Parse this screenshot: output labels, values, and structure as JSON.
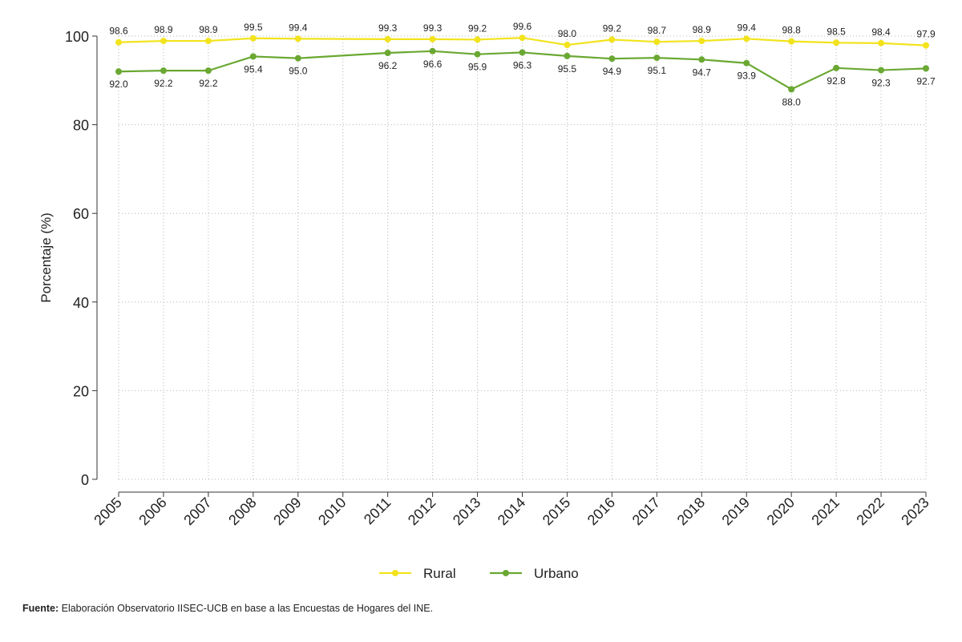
{
  "chart_data": {
    "type": "line",
    "title": "",
    "xlabel": "",
    "ylabel": "Porcentaje (%)",
    "ylim": [
      0,
      100
    ],
    "yticks": [
      0,
      20,
      40,
      60,
      80,
      100
    ],
    "grid": true,
    "legend_position": "bottom",
    "categories": [
      "2005",
      "2006",
      "2007",
      "2008",
      "2009",
      "2010",
      "2011",
      "2012",
      "2013",
      "2014",
      "2015",
      "2016",
      "2017",
      "2018",
      "2019",
      "2020",
      "2021",
      "2022",
      "2023"
    ],
    "series": [
      {
        "name": "Rural",
        "color": "#f2e31c",
        "values": [
          98.6,
          98.9,
          98.9,
          99.5,
          99.4,
          null,
          99.3,
          99.3,
          99.2,
          99.6,
          98.0,
          99.2,
          98.7,
          98.9,
          99.4,
          98.8,
          98.5,
          98.4,
          97.9
        ],
        "labels": [
          "98.6",
          "98.9",
          "98.9",
          "99.5",
          "99.4",
          null,
          "99.3",
          "99.3",
          "99.2",
          "99.6",
          "98.0",
          "99.2",
          "98.7",
          "98.9",
          "99.4",
          "98.8",
          "98.5",
          "98.4",
          "97.9"
        ]
      },
      {
        "name": "Urbano",
        "color": "#6aa832",
        "values": [
          92.0,
          92.2,
          92.2,
          95.4,
          95.0,
          null,
          96.2,
          96.6,
          95.9,
          96.3,
          95.5,
          94.9,
          95.1,
          94.7,
          93.9,
          88.0,
          92.8,
          92.3,
          92.7
        ],
        "labels": [
          "92.0",
          "92.2",
          "92.2",
          "95.4",
          "95.0",
          null,
          "96.2",
          "96.6",
          "95.9",
          "96.3",
          "95.5",
          "94.9",
          "95.1",
          "94.7",
          "93.9",
          "88.0",
          "92.8",
          "92.3",
          "92.7"
        ]
      }
    ]
  },
  "footer": {
    "source_label": "Fuente:",
    "source_text": " Elaboración Observatorio IISEC-UCB en base a las Encuestas de Hogares del INE."
  }
}
